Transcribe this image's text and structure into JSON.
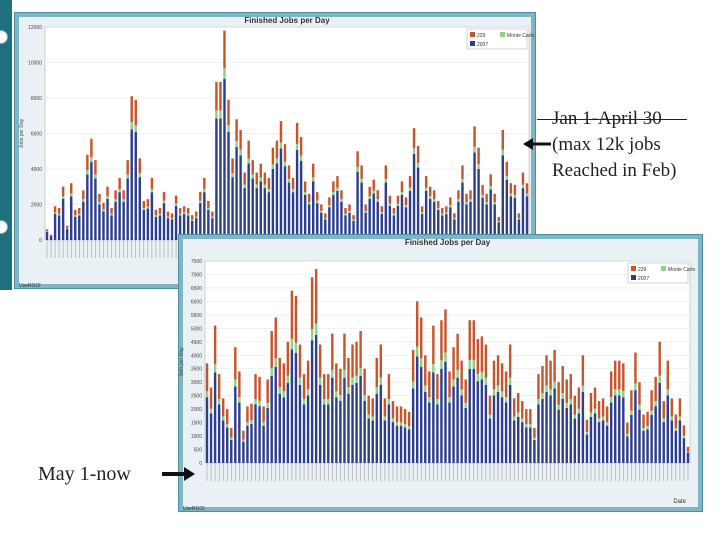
{
  "captions": {
    "top": "Jan 1-April 30\n(max 12k jobs\nReached in Feb)",
    "bottom": "May 1-now"
  },
  "chart_data": [
    {
      "type": "bar",
      "stacked": true,
      "title": "Finished Jobs per Day",
      "xlabel": "",
      "ylabel": "Jobs per Day",
      "ylim": [
        0,
        12000
      ],
      "yticks": [
        0,
        2000,
        4000,
        6000,
        8000,
        10000,
        12000
      ],
      "legend": [
        "229",
        "Monte Carlo",
        "2007"
      ],
      "legend_position": "top-right",
      "footer_label": "UseRGOI",
      "colors": {
        "229": "#c8552a",
        "Monte Carlo": "#8fd08a",
        "2007": "#2c3e8c"
      },
      "categories_count": 120,
      "totals": [
        600,
        300,
        1900,
        1800,
        3000,
        800,
        3200,
        1700,
        1800,
        2800,
        4800,
        5700,
        4500,
        2600,
        2100,
        3000,
        1800,
        2800,
        3500,
        2800,
        4500,
        8100,
        7900,
        4600,
        2200,
        2300,
        3500,
        1700,
        1800,
        2700,
        1600,
        1500,
        2500,
        1800,
        1900,
        1800,
        1400,
        1600,
        2700,
        3500,
        2200,
        1600,
        8900,
        8900,
        11800,
        7900,
        4600,
        6800,
        6200,
        3800,
        5600,
        4500,
        3800,
        4300,
        3800,
        3500,
        5200,
        5600,
        6700,
        5400,
        4200,
        3500,
        6600,
        5800,
        3300,
        2600,
        4300,
        2700,
        2000,
        1500,
        2400,
        3300,
        3600,
        2800,
        1800,
        2000,
        1400,
        5000,
        4200,
        2000,
        3000,
        3400,
        2800,
        1900,
        4200,
        2500,
        1800,
        2500,
        3300,
        2400,
        3600,
        6300,
        5300,
        1900,
        3600,
        3000,
        2800,
        2200,
        1800,
        1900,
        2400,
        1500,
        2800,
        4200,
        2600,
        2800,
        6400,
        5200,
        3100,
        2600,
        3700,
        2600,
        1300,
        6200,
        4400,
        3200,
        3100,
        1500,
        3800,
        3200
      ],
      "series_share": {
        "229": 0.18,
        "Monte Carlo": 0.05,
        "2007": 0.77
      }
    },
    {
      "type": "bar",
      "stacked": true,
      "title": "Finished Jobs per Day",
      "xlabel": "Date",
      "ylabel": "Jobs per Day",
      "ylim": [
        0,
        7500
      ],
      "yticks": [
        0,
        500,
        1000,
        1500,
        2000,
        2500,
        3000,
        3500,
        4000,
        4500,
        5000,
        5500,
        6000,
        6500,
        7000,
        7500
      ],
      "legend": [
        "229",
        "Monte Carlo",
        "2007"
      ],
      "legend_position": "top-right",
      "footer_label": "UseRGOI",
      "colors": {
        "229": "#c8552a",
        "Monte Carlo": "#8fd08a",
        "2007": "#2c3e8c"
      },
      "categories_count": 120,
      "totals": [
        3700,
        2800,
        5100,
        3300,
        2400,
        2000,
        1300,
        4300,
        3400,
        1200,
        2100,
        2200,
        3300,
        3200,
        2100,
        3100,
        4900,
        5400,
        3900,
        3700,
        4500,
        6400,
        6200,
        4400,
        3300,
        3800,
        6900,
        7200,
        4400,
        3300,
        3300,
        4800,
        3700,
        3500,
        4800,
        3900,
        4400,
        4500,
        4900,
        3500,
        2500,
        2400,
        3900,
        4400,
        2400,
        3300,
        2300,
        2100,
        2100,
        2000,
        1900,
        4200,
        6000,
        5400,
        4000,
        3400,
        5100,
        3300,
        5300,
        5700,
        3400,
        4300,
        4800,
        3800,
        3100,
        5300,
        5300,
        4600,
        4700,
        4400,
        2500,
        3800,
        4000,
        3700,
        3400,
        4400,
        2400,
        2600,
        2300,
        2000,
        2000,
        1300,
        3300,
        3600,
        4000,
        3800,
        4200,
        3000,
        3600,
        3100,
        3300,
        2500,
        2800,
        4000,
        1600,
        2600,
        2800,
        2300,
        2400,
        2100,
        3400,
        3800,
        3800,
        3700,
        1500,
        2700,
        4100,
        3000,
        1800,
        1900,
        2700,
        3200,
        4500,
        2300,
        3800,
        2400,
        1800,
        2400,
        1400,
        600
      ],
      "series_share": {
        "229": 0.28,
        "Monte Carlo": 0.06,
        "2007": 0.66
      }
    }
  ]
}
